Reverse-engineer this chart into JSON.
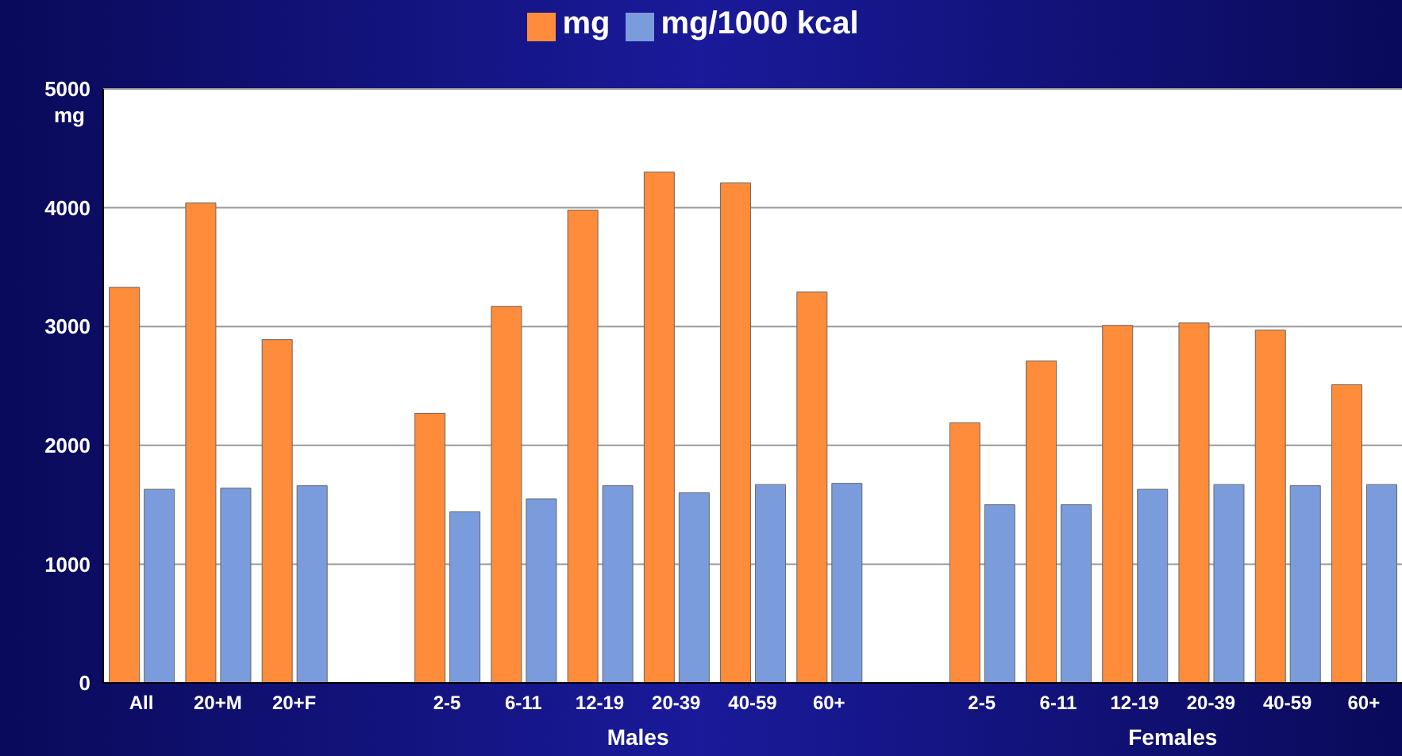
{
  "chart_data": {
    "type": "bar",
    "ylabel": "mg",
    "categories": [
      "All",
      "20+M",
      "20+F",
      null,
      "2-5",
      "6-11",
      "12-19",
      "20-39",
      "40-59",
      "60+",
      null,
      "2-5",
      "6-11",
      "12-19",
      "20-39",
      "40-59",
      "60+"
    ],
    "series": [
      {
        "name": "mg",
        "color": "#ff8c3a",
        "values": [
          3330,
          4040,
          2890,
          null,
          2270,
          3170,
          3980,
          4300,
          4210,
          3290,
          null,
          2190,
          2710,
          3010,
          3030,
          2970,
          2510
        ]
      },
      {
        "name": "mg/1000 kcal",
        "color": "#7b9cdc",
        "values": [
          1630,
          1640,
          1660,
          null,
          1440,
          1550,
          1660,
          1600,
          1670,
          1680,
          null,
          1500,
          1500,
          1630,
          1670,
          1660,
          1670
        ]
      }
    ],
    "ylim": [
      0,
      5000
    ],
    "yticks": [
      0,
      1000,
      2000,
      3000,
      4000,
      5000
    ],
    "grid": "y",
    "legend": "top",
    "annotations": [
      "Males",
      "Females"
    ]
  }
}
